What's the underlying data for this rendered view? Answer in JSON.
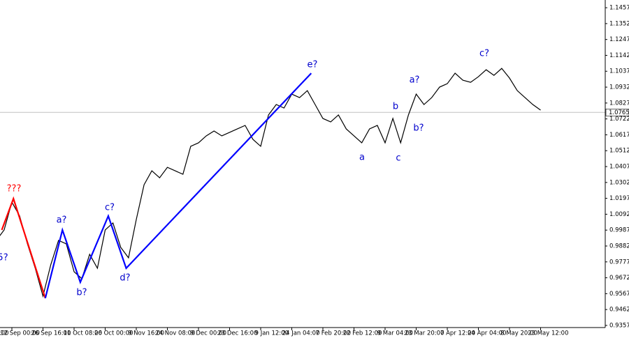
{
  "chart_data": {
    "type": "line",
    "color": "#000000",
    "categories": [
      "8:00",
      null,
      null,
      null,
      "12 Sep 00:00",
      null,
      null,
      null,
      "26 Sep 16:00",
      null,
      null,
      null,
      "11 Oct 08:00",
      null,
      null,
      null,
      "26 Oct 00:00",
      null,
      null,
      null,
      "9 Nov 16:00",
      null,
      null,
      null,
      "24 Nov 08:00",
      null,
      null,
      null,
      "9 Dec 00:00",
      null,
      null,
      null,
      "23 Dec 16:00",
      null,
      null,
      null,
      "9 Jan 12:00",
      null,
      null,
      null,
      "24 Jan 04:00",
      null,
      null,
      null,
      "7 Feb 20:00",
      null,
      null,
      null,
      "22 Feb 12:00",
      null,
      null,
      null,
      "9 Mar 04:00",
      null,
      null,
      null,
      "23 Mar 20:00",
      null,
      null,
      null,
      "7 Apr 12:00",
      null,
      null,
      null,
      "24 Apr 04:00",
      null,
      null,
      null,
      "8 May 20:00",
      null,
      null,
      null,
      "23 May 12:00"
    ],
    "values": [
      1.0034,
      0.9965,
      0.9919,
      0.9988,
      1.0172,
      1.008,
      0.9896,
      0.9735,
      0.9551,
      0.9758,
      0.9919,
      0.9896,
      0.9712,
      0.9666,
      0.9827,
      0.9735,
      0.9988,
      1.0034,
      0.9873,
      0.9804,
      1.0057,
      1.0287,
      1.0379,
      1.0333,
      1.0402,
      1.0379,
      1.0356,
      1.0541,
      1.0564,
      1.061,
      1.0642,
      1.061,
      1.0633,
      1.0656,
      1.0679,
      1.0587,
      1.0541,
      1.0748,
      1.0817,
      1.0794,
      1.0886,
      1.0863,
      1.0909,
      1.0817,
      1.0725,
      1.0702,
      1.0748,
      1.0656,
      1.061,
      1.0564,
      1.0656,
      1.0679,
      1.0564,
      1.0725,
      1.0564,
      1.0748,
      1.0886,
      1.0817,
      1.0863,
      1.0932,
      1.0955,
      1.1024,
      1.0978,
      1.0964,
      1.1001,
      1.1047,
      1.101,
      1.1056,
      1.0992,
      1.0909,
      1.0863,
      1.0817,
      1.078
    ],
    "ylim": [
      0.9343,
      1.1508
    ],
    "yticks": [
      1.1457,
      1.1352,
      1.1247,
      1.1142,
      1.1037,
      1.0932,
      1.0827,
      1.0722,
      1.0617,
      1.0512,
      1.0407,
      1.0302,
      1.0197,
      1.0092,
      0.9987,
      0.9882,
      0.9777,
      0.9672,
      0.9567,
      0.9462,
      0.9357
    ],
    "current_price": 1.0765,
    "waves": [
      {
        "color": "#ff0000",
        "values": [
          0.9988,
          1.0195,
          0.9537
        ]
      },
      {
        "color": "#0000ff",
        "values": [
          0.9537,
          0.9988,
          0.9643,
          1.008,
          0.9735,
          1.1024
        ]
      }
    ],
    "annotations": [
      {
        "text": "???",
        "color": "#ff0000"
      },
      {
        "text": "5?",
        "color": "#0000cd"
      },
      {
        "text": "a?",
        "color": "#0000cd"
      },
      {
        "text": "b?",
        "color": "#0000cd"
      },
      {
        "text": "c?",
        "color": "#0000cd"
      },
      {
        "text": "d?",
        "color": "#0000cd"
      },
      {
        "text": "e?",
        "color": "#0000cd"
      },
      {
        "text": "a",
        "color": "#0000cd"
      },
      {
        "text": "b",
        "color": "#0000cd"
      },
      {
        "text": "c",
        "color": "#0000cd"
      },
      {
        "text": "a?",
        "color": "#0000cd"
      },
      {
        "text": "b?",
        "color": "#0000cd"
      },
      {
        "text": "c?",
        "color": "#0000cd"
      }
    ]
  }
}
